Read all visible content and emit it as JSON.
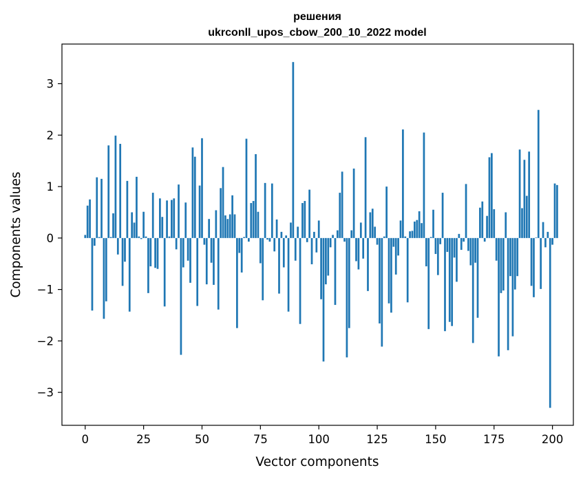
{
  "chart_data": {
    "type": "bar",
    "title_lines": [
      "решения",
      "ukrconll_upos_cbow_200_10_2022 model"
    ],
    "xlabel": "Vector components",
    "ylabel": "Components values",
    "xlim": [
      -9.95,
      208.95
    ],
    "ylim": [
      -3.64,
      3.77
    ],
    "xticks": [
      0,
      25,
      50,
      75,
      100,
      125,
      150,
      175,
      200
    ],
    "yticks": [
      -3,
      -2,
      -1,
      0,
      1,
      2,
      3
    ],
    "grid": false,
    "legend": "none",
    "bar_color": "#1f77b4",
    "values": [
      0.06,
      0.63,
      0.75,
      -1.41,
      -0.15,
      1.18,
      0.02,
      1.15,
      -1.57,
      -1.23,
      1.8,
      0.02,
      0.48,
      1.99,
      -0.32,
      1.83,
      -0.93,
      -0.46,
      1.11,
      -1.43,
      0.5,
      0.3,
      1.19,
      0.03,
      -0.02,
      0.51,
      0.03,
      -1.07,
      -0.55,
      0.88,
      -0.58,
      -0.6,
      0.77,
      0.41,
      -1.33,
      0.73,
      0.03,
      0.74,
      0.77,
      -0.22,
      1.04,
      -2.27,
      -0.57,
      0.69,
      -0.44,
      -0.87,
      1.76,
      1.58,
      -1.32,
      1.02,
      1.94,
      -0.13,
      -0.9,
      0.37,
      -0.48,
      -0.91,
      0.54,
      -1.39,
      0.97,
      1.38,
      0.44,
      0.37,
      0.46,
      0.83,
      0.46,
      -1.75,
      -0.29,
      -0.67,
      0.02,
      1.93,
      -0.07,
      0.68,
      0.72,
      1.63,
      0.51,
      -0.49,
      -1.21,
      1.07,
      -0.03,
      -0.07,
      1.06,
      -0.26,
      0.36,
      -1.08,
      0.12,
      -0.57,
      0.05,
      -1.43,
      0.3,
      3.42,
      -0.44,
      0.22,
      -1.67,
      0.68,
      0.72,
      -0.08,
      0.94,
      -0.51,
      0.12,
      -0.28,
      0.34,
      -1.19,
      -2.4,
      -0.9,
      -0.73,
      -0.18,
      0.06,
      -1.3,
      0.15,
      0.88,
      1.29,
      -0.07,
      -2.32,
      -1.75,
      0.15,
      1.35,
      -0.45,
      -0.61,
      0.3,
      -0.4,
      1.96,
      -1.03,
      0.5,
      0.57,
      0.22,
      -0.13,
      -1.66,
      -2.11,
      0.03,
      1.0,
      -1.27,
      -1.45,
      -0.17,
      -0.71,
      -0.34,
      0.34,
      2.11,
      0.03,
      -1.25,
      0.13,
      0.14,
      0.32,
      0.35,
      0.52,
      0.29,
      2.05,
      -0.55,
      -1.77,
      0.02,
      0.55,
      -0.31,
      -0.72,
      -0.12,
      0.88,
      -1.81,
      -0.27,
      -1.63,
      -1.71,
      -0.38,
      -0.85,
      0.08,
      -0.23,
      -0.07,
      1.05,
      -0.25,
      -0.53,
      -2.04,
      -0.48,
      -1.55,
      0.59,
      0.71,
      -0.07,
      0.43,
      1.57,
      1.65,
      0.56,
      -0.44,
      -2.3,
      -1.07,
      -1.02,
      0.5,
      -2.18,
      -0.74,
      -1.91,
      -1.0,
      -0.74,
      1.72,
      0.58,
      1.52,
      0.82,
      1.68,
      -0.93,
      -1.15,
      0.01,
      2.49,
      -0.99,
      0.31,
      -0.18,
      0.12,
      -3.3,
      -0.13,
      1.06,
      1.03
    ]
  }
}
